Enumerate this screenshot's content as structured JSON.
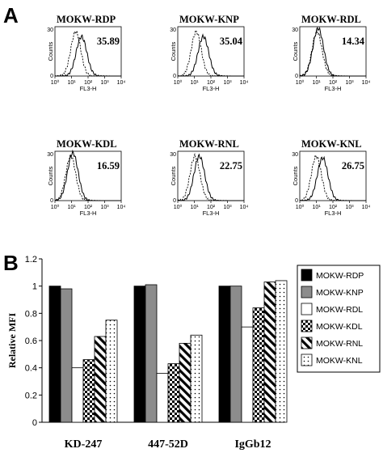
{
  "panel_a_label": "A",
  "panel_b_label": "B",
  "chart_data": [
    {
      "type": "histogram-grid",
      "x_axis_label": "FL3-H",
      "y_axis_label": "Counts",
      "x_tick_labels": [
        "10⁰",
        "10¹",
        "10²",
        "10³",
        "10⁴"
      ],
      "y_tick_top": "30",
      "y_tick_zero": "0",
      "ylim": [
        0,
        30
      ],
      "x_scale": "log",
      "panels": [
        {
          "title": "MOKW-RDP",
          "mfi": "35.89",
          "ctrl_peak": 18,
          "ctrl_height": 27,
          "test_peak": 40,
          "test_height": 24
        },
        {
          "title": "MOKW-KNP",
          "mfi": "35.04",
          "ctrl_peak": 13,
          "ctrl_height": 27,
          "test_peak": 35,
          "test_height": 24
        },
        {
          "title": "MOKW-RDL",
          "mfi": "14.34",
          "ctrl_peak": 11,
          "ctrl_height": 27,
          "test_peak": 13,
          "test_height": 29
        },
        {
          "title": "MOKW-KDL",
          "mfi": "16.59",
          "ctrl_peak": 9,
          "ctrl_height": 27,
          "test_peak": 12,
          "test_height": 29
        },
        {
          "title": "MOKW-RNL",
          "mfi": "22.75",
          "ctrl_peak": 11,
          "ctrl_height": 27,
          "test_peak": 20,
          "test_height": 27
        },
        {
          "title": "MOKW-KNL",
          "mfi": "26.75",
          "ctrl_peak": 10,
          "ctrl_height": 27,
          "test_peak": 24,
          "test_height": 26
        }
      ]
    },
    {
      "type": "bar",
      "ylabel": "Relative MFI",
      "ylim": [
        0,
        1.2
      ],
      "y_ticks": [
        0,
        0.2,
        0.4,
        0.6,
        0.8,
        1,
        1.2
      ],
      "y_tick_labels": [
        "0",
        "0.2",
        "0.4",
        "0.6",
        "0.8",
        "1",
        "1.2"
      ],
      "categories": [
        "KD-247",
        "447-52D",
        "IgGb12"
      ],
      "legend_position": "right",
      "series": [
        {
          "name": "MOKW-RDP",
          "pattern": "solid-black",
          "values": [
            1.0,
            1.0,
            1.0
          ]
        },
        {
          "name": "MOKW-KNP",
          "pattern": "solid-gray",
          "values": [
            0.98,
            1.01,
            1.0
          ]
        },
        {
          "name": "MOKW-RDL",
          "pattern": "white",
          "values": [
            0.4,
            0.36,
            0.7
          ]
        },
        {
          "name": "MOKW-KDL",
          "pattern": "checker",
          "values": [
            0.46,
            0.43,
            0.84
          ]
        },
        {
          "name": "MOKW-RNL",
          "pattern": "diagonal",
          "values": [
            0.63,
            0.58,
            1.03
          ]
        },
        {
          "name": "MOKW-KNL",
          "pattern": "dots",
          "values": [
            0.75,
            0.64,
            1.04
          ]
        }
      ]
    }
  ]
}
